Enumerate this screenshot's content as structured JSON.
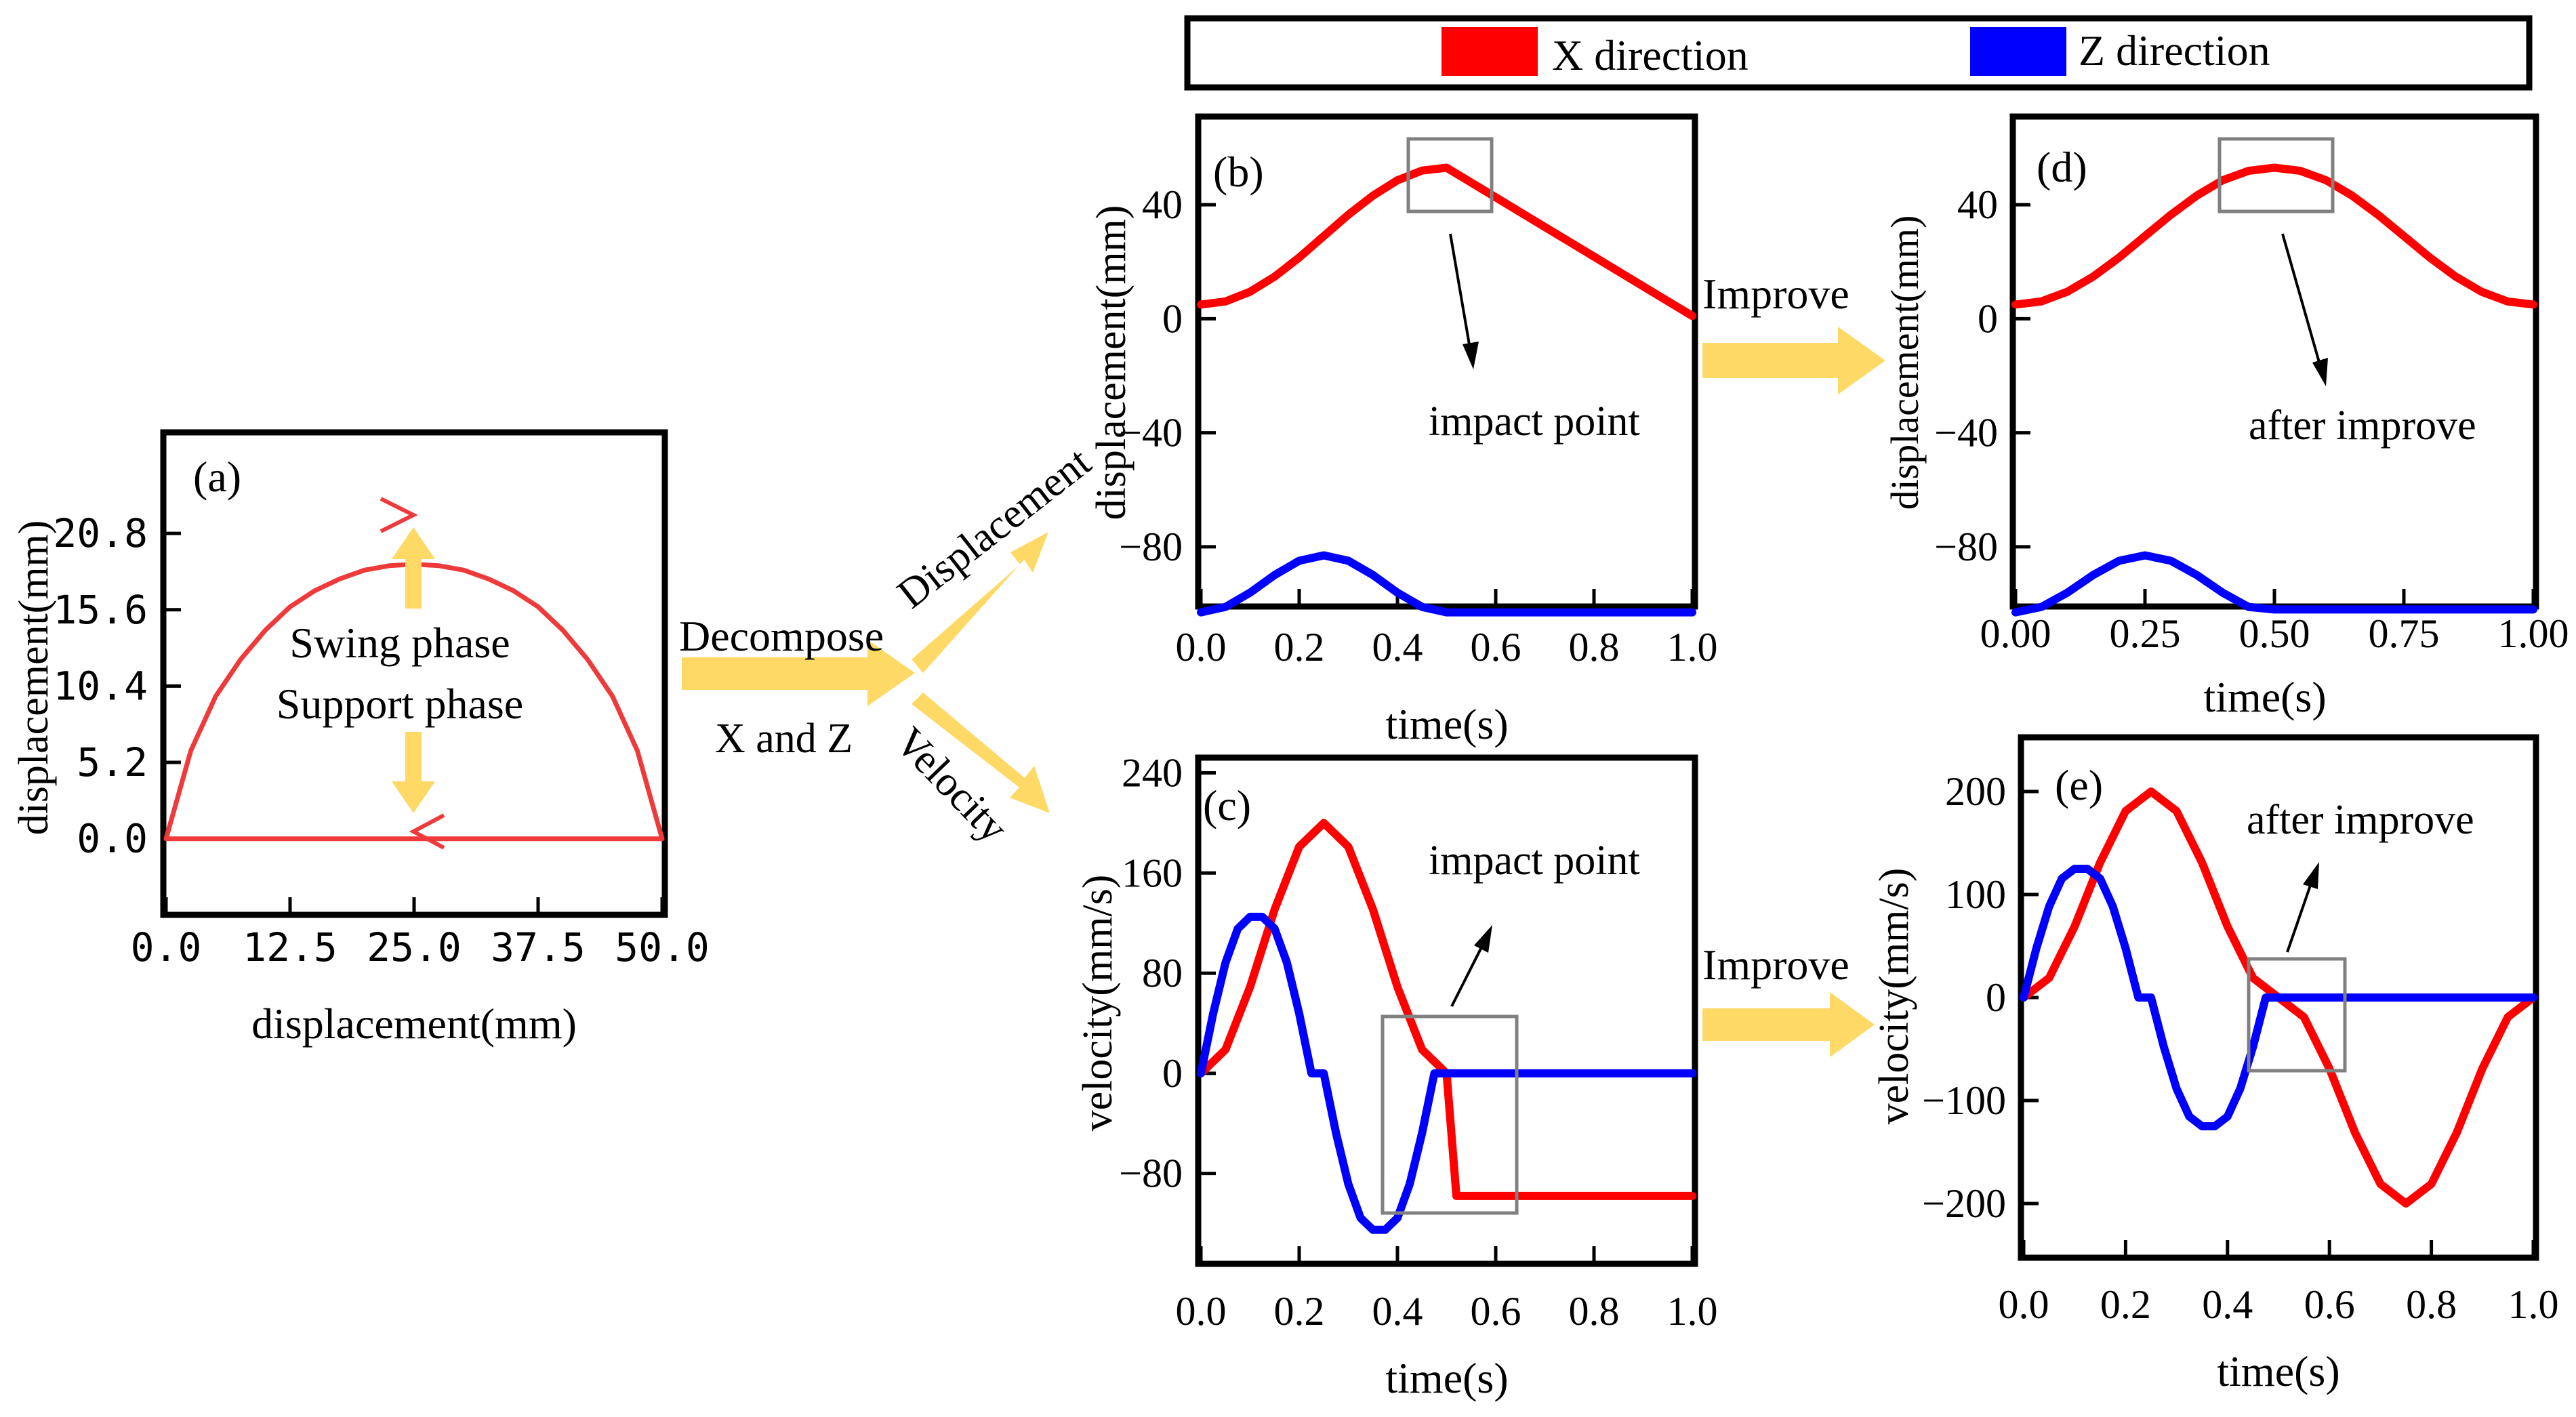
{
  "colors": {
    "x_series": "#ff0000",
    "z_series": "#0000ff",
    "trajectory": "#ee3a3a",
    "arrow": "#ffd966",
    "box": "#808080",
    "frame": "#000000"
  },
  "legend": {
    "x_label": "X direction",
    "z_label": "Z direction"
  },
  "flow": {
    "decompose": "Decompose",
    "x_and_z": "X and Z",
    "displacement": "Displacement",
    "velocity": "Velocity",
    "improve_top": "Improve",
    "improve_bottom": "Improve"
  },
  "chart_data": [
    {
      "id": "a",
      "panel_label": "(a)",
      "type": "line",
      "xlabel": "displacement(mm)",
      "ylabel": "displacement(mm)",
      "xlim": [
        0,
        50
      ],
      "ylim": [
        -5,
        27.5
      ],
      "xticks": [
        "0.0",
        "12.5",
        "25.0",
        "37.5",
        "50.0"
      ],
      "yticks": [
        "0.0",
        "5.2",
        "10.4",
        "15.6",
        "20.8"
      ],
      "annotations": [
        "Swing phase",
        "Support phase"
      ],
      "series": [
        {
          "color": "trajectory",
          "x": [
            0,
            2.5,
            5,
            7.5,
            10,
            12.5,
            15,
            17.5,
            20,
            22.5,
            25,
            27.5,
            30,
            32.5,
            35,
            37.5,
            40,
            42.5,
            45,
            47.5,
            50
          ],
          "y": [
            0,
            6.0,
            9.7,
            12.2,
            14.2,
            15.8,
            16.9,
            17.7,
            18.3,
            18.6,
            18.7,
            18.6,
            18.3,
            17.7,
            16.9,
            15.8,
            14.2,
            12.2,
            9.7,
            6.0,
            0
          ]
        },
        {
          "color": "trajectory",
          "x": [
            50,
            0
          ],
          "y": [
            0,
            0
          ]
        }
      ]
    },
    {
      "id": "b",
      "panel_label": "(b)",
      "type": "line",
      "xlabel": "time(s)",
      "ylabel": "displacement(mm)",
      "xlim": [
        0,
        1
      ],
      "ylim": [
        -100,
        70
      ],
      "xticks": [
        "0.0",
        "0.2",
        "0.4",
        "0.6",
        "0.8",
        "1.0"
      ],
      "yticks": [
        "40",
        "0",
        "−40",
        "−80"
      ],
      "annotation": "impact point",
      "series": [
        {
          "name": "X direction",
          "color": "x_series",
          "x": [
            0,
            0.05,
            0.1,
            0.15,
            0.2,
            0.25,
            0.3,
            0.35,
            0.4,
            0.45,
            0.5,
            0.6,
            0.7,
            0.8,
            0.9,
            1.0
          ],
          "y": [
            5,
            6.1,
            9.5,
            14.8,
            21.5,
            29.0,
            36.5,
            43.2,
            48.6,
            52.0,
            53,
            42.6,
            32.2,
            21.8,
            11.4,
            1
          ]
        },
        {
          "name": "Z direction",
          "color": "z_series",
          "x": [
            0,
            0.05,
            0.1,
            0.15,
            0.2,
            0.25,
            0.3,
            0.35,
            0.4,
            0.45,
            0.5,
            0.6,
            0.7,
            0.8,
            0.9,
            1.0
          ],
          "y": [
            -103,
            -101.1,
            -96.1,
            -89.9,
            -84.9,
            -83,
            -84.9,
            -89.9,
            -96.1,
            -101.1,
            -103,
            -103,
            -103,
            -103,
            -103,
            -103
          ]
        }
      ]
    },
    {
      "id": "c",
      "panel_label": "(c)",
      "type": "line",
      "xlabel": "time(s)",
      "ylabel": "velocity(mm/s)",
      "xlim": [
        0,
        1
      ],
      "ylim": [
        -150,
        250
      ],
      "xticks": [
        "0.0",
        "0.2",
        "0.4",
        "0.6",
        "0.8",
        "1.0"
      ],
      "yticks": [
        "240",
        "160",
        "80",
        "0",
        "−80"
      ],
      "annotation": "impact point",
      "series": [
        {
          "name": "X direction",
          "color": "x_series",
          "x": [
            0,
            0.05,
            0.1,
            0.15,
            0.2,
            0.25,
            0.3,
            0.35,
            0.4,
            0.45,
            0.5,
            0.52,
            0.6,
            0.7,
            0.8,
            0.9,
            1.0
          ],
          "y": [
            0,
            19,
            69,
            131,
            181,
            200,
            181,
            131,
            69,
            19,
            0,
            -98,
            -98,
            -98,
            -98,
            -98,
            -98
          ]
        },
        {
          "name": "Z direction",
          "color": "z_series",
          "x": [
            0,
            0.025,
            0.05,
            0.075,
            0.1,
            0.125,
            0.15,
            0.175,
            0.2,
            0.225,
            0.25,
            0.275,
            0.3,
            0.325,
            0.35,
            0.375,
            0.4,
            0.425,
            0.45,
            0.475,
            0.5,
            0.6,
            0.7,
            0.8,
            0.9,
            1.0
          ],
          "y": [
            0,
            47.8,
            88.4,
            115.5,
            125,
            125,
            115.5,
            88.4,
            47.8,
            0,
            0,
            -47.8,
            -88.4,
            -115.5,
            -125,
            -125,
            -115.5,
            -88.4,
            -47.8,
            0,
            0,
            0,
            0,
            0,
            0,
            0
          ]
        }
      ]
    },
    {
      "id": "d",
      "panel_label": "(d)",
      "type": "line",
      "xlabel": "time(s)",
      "ylabel": "displacement(mm)",
      "xlim": [
        0,
        1
      ],
      "ylim": [
        -100,
        70
      ],
      "xticks": [
        "0.00",
        "0.25",
        "0.50",
        "0.75",
        "1.00"
      ],
      "yticks": [
        "40",
        "0",
        "−40",
        "−80"
      ],
      "annotation": "after improve",
      "series": [
        {
          "name": "X direction",
          "color": "x_series",
          "x": [
            0,
            0.05,
            0.1,
            0.15,
            0.2,
            0.25,
            0.3,
            0.35,
            0.4,
            0.45,
            0.5,
            0.55,
            0.6,
            0.65,
            0.7,
            0.75,
            0.8,
            0.85,
            0.9,
            0.95,
            1.0
          ],
          "y": [
            5,
            6.1,
            9.5,
            14.8,
            21.5,
            29,
            36.5,
            43.2,
            48.6,
            51.9,
            53,
            51.9,
            48.6,
            43.2,
            36.5,
            29,
            21.5,
            14.8,
            9.5,
            6.1,
            5
          ]
        },
        {
          "name": "Z direction",
          "color": "z_series",
          "x": [
            0,
            0.05,
            0.1,
            0.15,
            0.2,
            0.25,
            0.3,
            0.35,
            0.4,
            0.45,
            0.5,
            0.6,
            0.7,
            0.8,
            0.9,
            1.0
          ],
          "y": [
            -103,
            -101.1,
            -96.1,
            -89.9,
            -84.9,
            -83,
            -84.9,
            -89.9,
            -96.1,
            -101.1,
            -102,
            -102,
            -102,
            -102,
            -102,
            -102
          ]
        }
      ]
    },
    {
      "id": "e",
      "panel_label": "(e)",
      "type": "line",
      "xlabel": "time(s)",
      "ylabel": "velocity(mm/s)",
      "xlim": [
        0,
        1
      ],
      "ylim": [
        -250,
        250
      ],
      "xticks": [
        "0.0",
        "0.2",
        "0.4",
        "0.6",
        "0.8",
        "1.0"
      ],
      "yticks": [
        "200",
        "100",
        "0",
        "−100",
        "−200"
      ],
      "annotation": "after improve",
      "series": [
        {
          "name": "X direction",
          "color": "x_series",
          "x": [
            0,
            0.05,
            0.1,
            0.15,
            0.2,
            0.25,
            0.3,
            0.35,
            0.4,
            0.45,
            0.5,
            0.55,
            0.6,
            0.65,
            0.7,
            0.75,
            0.8,
            0.85,
            0.9,
            0.95,
            1.0
          ],
          "y": [
            0,
            19,
            69,
            131,
            181,
            200,
            181,
            131,
            69,
            19,
            0,
            -19,
            -69,
            -131,
            -181,
            -200,
            -181,
            -131,
            -69,
            -19,
            0
          ]
        },
        {
          "name": "Z direction",
          "color": "z_series",
          "x": [
            0,
            0.025,
            0.05,
            0.075,
            0.1,
            0.125,
            0.15,
            0.175,
            0.2,
            0.225,
            0.25,
            0.275,
            0.3,
            0.325,
            0.35,
            0.375,
            0.4,
            0.425,
            0.45,
            0.475,
            0.5,
            0.6,
            0.7,
            0.8,
            0.9,
            1.0
          ],
          "y": [
            0,
            47.8,
            88.4,
            115.5,
            125,
            125,
            115.5,
            88.4,
            47.8,
            0,
            0,
            -47.8,
            -88.4,
            -115.5,
            -125,
            -125,
            -115.5,
            -88.4,
            -47.8,
            0,
            0,
            0,
            0,
            0,
            0,
            0
          ]
        }
      ]
    }
  ]
}
